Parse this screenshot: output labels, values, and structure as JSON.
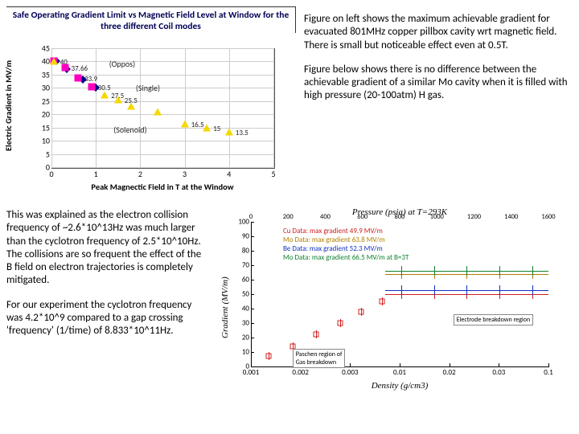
{
  "chart1": {
    "title": "Safe Operating Gradient Limit vs Magnetic Field Level at Window for the three different Coil modes",
    "ylabel": "Electric Gradient in MV/m",
    "xlabel": "Peak Magnectic Field in T at the Window",
    "ylim": [
      0,
      45
    ],
    "ytick_step": 5,
    "xlim": [
      0,
      5
    ],
    "xtick_step": 1,
    "series_labels": {
      "oppos": "(Oppos)",
      "single": "(Single)",
      "solenoid": "(Solenoid)"
    },
    "points": {
      "squares": [
        {
          "x": 0.05,
          "y": 40,
          "label": "40"
        },
        {
          "x": 0.3,
          "y": 37.66,
          "label": "37.66"
        },
        {
          "x": 0.6,
          "y": 33.9,
          "label": "33.9"
        },
        {
          "x": 0.9,
          "y": 30.5,
          "label": "30.5"
        }
      ],
      "triangles": [
        {
          "x": 0.05,
          "y": 40
        },
        {
          "x": 1.2,
          "y": 27.5,
          "label": "27.5"
        },
        {
          "x": 1.5,
          "y": 25.5,
          "label": "25.5"
        },
        {
          "x": 1.8,
          "y": 23.2,
          "label": ""
        },
        {
          "x": 2.4,
          "y": 21.0,
          "label": ""
        },
        {
          "x": 3.0,
          "y": 16.5,
          "label": "16.5"
        },
        {
          "x": 3.5,
          "y": 15,
          "label": "15"
        },
        {
          "x": 4.0,
          "y": 13.5,
          "label": "13.5"
        }
      ],
      "diamonds": [
        {
          "x": 0.1,
          "y": 40
        },
        {
          "x": 0.35,
          "y": 37
        },
        {
          "x": 0.7,
          "y": 33
        },
        {
          "x": 1.0,
          "y": 30
        }
      ]
    },
    "colors": {
      "square": "#ff00c0",
      "triangle": "#f5d800",
      "diamond": "#000088"
    }
  },
  "text_top_right_p1": "Figure on left shows the maximum achievable gradient for evacuated 801MHz copper pillbox cavity wrt magnetic field. There is  small but noticeable effect even at 0.5T.",
  "text_top_right_p2": "Figure below shows there is no difference between the achievable gradient of a similar Mo cavity when it is filled with high pressure (20-100atm) H gas.",
  "text_bottom_left_p1": "This was explained as the electron collision frequency of ~2.6*10^13Hz was much larger than the cyclotron frequency of 2.5*10^10Hz. The collisions are so frequent the effect of the B field on electron trajectories is completely mitigated.",
  "text_bottom_left_p2": "For our experiment the cyclotron frequency was 4.2*10^9 compared to a gap crossing 'frequency' (1/time) of 8.833*10^11Hz.",
  "chart2": {
    "top_axis_label": "Pressure (psia) at T=293K",
    "ylabel": "Gradient (MV/m)",
    "xlabel": "Density (g/cm3)",
    "ylim": [
      0,
      100
    ],
    "yticks": [
      0,
      10,
      20,
      30,
      40,
      50,
      60,
      70,
      80,
      90,
      100
    ],
    "x_log": true,
    "xticks_labels": [
      "0.001",
      "0.002",
      "0.003",
      "0.01",
      "0.02",
      "0.03",
      "0.1"
    ],
    "topticks_labels": [
      "0",
      "200",
      "400",
      "600",
      "800",
      "1000",
      "1200",
      "1400",
      "1600"
    ],
    "legend": [
      {
        "color": "#d02020",
        "text": "Cu Data: max gradient 49.9 MV/m"
      },
      {
        "color": "#b08000",
        "text": "Mo Data: max gradient 63.8 MV/m"
      },
      {
        "color": "#1030c0",
        "text": "Be Data: max gradient 52.3 MV/m"
      },
      {
        "color": "#108030",
        "text": "Mo Data: max gradient 66.5 MV/m at B=3T"
      }
    ],
    "asymptotes": [
      {
        "y": 50,
        "color": "#d02020"
      },
      {
        "y": 64,
        "color": "#b08000"
      },
      {
        "y": 53,
        "color": "#1030c0"
      },
      {
        "y": 66,
        "color": "#108030"
      }
    ],
    "rise_points": [
      {
        "logx": 0.06,
        "y": 7
      },
      {
        "logx": 0.14,
        "y": 14
      },
      {
        "logx": 0.22,
        "y": 22
      },
      {
        "logx": 0.3,
        "y": 30
      },
      {
        "logx": 0.37,
        "y": 38
      },
      {
        "logx": 0.44,
        "y": 45
      }
    ],
    "ann1": "Electrode breakdown region",
    "ann2_l1": "Paschen region of",
    "ann2_l2": "Gas breakdown"
  }
}
